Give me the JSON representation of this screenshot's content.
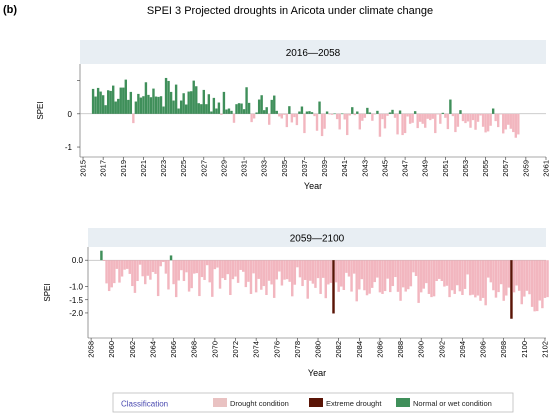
{
  "panel_tag": "(b)",
  "title": "SPEI 3 Projected droughts in Aricota under climate change",
  "colors": {
    "panel_header": "#e8eef3",
    "panel_bg": "#ffffff",
    "normal": "#3f8f5a",
    "drought": "#f2b6bf",
    "extreme": "#5a1406",
    "axis": "#000000",
    "legend_title": "#4a4ab0"
  },
  "legend": {
    "title": "Classification",
    "items": [
      {
        "label": "Drought condition",
        "color": "#e9c2c2"
      },
      {
        "label": "Extreme drought",
        "color": "#5a1406"
      },
      {
        "label": "Normal or wet condition",
        "color": "#3f8f5a"
      }
    ]
  },
  "chart_data": [
    {
      "type": "bar",
      "panel": "2016—2058",
      "xlabel": "Year",
      "ylabel": "SPEI",
      "xlim": [
        2014.7,
        2061
      ],
      "ylim": [
        -1.3,
        1.5
      ],
      "xticks": [
        2015,
        2017,
        2019,
        2021,
        2023,
        2025,
        2027,
        2029,
        2031,
        2033,
        2035,
        2037,
        2039,
        2041,
        2043,
        2045,
        2047,
        2049,
        2051,
        2053,
        2055,
        2057,
        2059,
        2061
      ],
      "yticks": [
        {
          "value": 1,
          "label": ""
        },
        {
          "value": 0,
          "label": "0"
        },
        {
          "value": -1,
          "label": "-1"
        }
      ],
      "x_start": 2016,
      "step": 0.25,
      "series": [
        {
          "values": [
            0.75,
            0.52,
            0.78,
            0.67,
            0.56,
            0.26,
            0.71,
            0.69,
            0.85,
            0.37,
            0.45,
            0.79,
            0.79,
            1.03,
            0.42,
            0.66,
            -0.28,
            0.37,
            0.6,
            0.49,
            0.53,
            0.95,
            0.57,
            0.5,
            0.76,
            0.52,
            0.51,
            0.53,
            0.22,
            1.08,
            0.99,
            0.66,
            0.4,
            0.88,
            0.16,
            0.4,
            0.62,
            0.28,
            0.67,
            0.68,
            1.0,
            0.83,
            0.32,
            0.29,
            0.72,
            0.29,
            0.59,
            0.07,
            0.48,
            0.16,
            0.34,
            -0.03,
            0.66,
            0.13,
            0.16,
            0.09,
            -0.27,
            0.29,
            0.32,
            0.31,
            0.14,
            0.8,
            0.33,
            -0.25,
            -0.14,
            0.04,
            0.43,
            0.56,
            0.11,
            0.2,
            -0.33,
            0.42,
            0.55,
            0.09,
            -0.08,
            -0.14,
            -0.03,
            -0.4,
            0.23,
            -0.26,
            -0.1,
            -0.34,
            0.07,
            0.22,
            -0.58,
            0.07,
            0.08,
            0.05,
            -0.07,
            -0.51,
            0.37,
            -0.67,
            -0.45,
            0.07,
            -0.02,
            -0.03,
            0.01,
            -0.16,
            -0.47,
            0.01,
            -0.17,
            -0.64,
            -0.05,
            0.2,
            -0.04,
            0.07,
            -0.47,
            -0.21,
            -0.12,
            0.18,
            0.04,
            -0.21,
            -0.02,
            0.09,
            -0.69,
            -0.16,
            -0.44,
            -0.06,
            0.04,
            0.12,
            -0.12,
            -0.62,
            0.1,
            -0.64,
            -0.58,
            -0.08,
            -0.3,
            -0.27,
            0.08,
            -0.43,
            -0.24,
            -0.3,
            -0.42,
            -0.15,
            -0.19,
            -0.15,
            -0.58,
            -0.02,
            -0.3,
            0.03,
            -0.12,
            -0.46,
            0.43,
            -0.07,
            -0.55,
            -0.39,
            0.11,
            -0.22,
            -0.28,
            -0.23,
            -0.42,
            -0.19,
            -0.48,
            -0.24,
            -0.05,
            -0.39,
            -0.56,
            -0.53,
            -0.36,
            0.16,
            -0.22,
            -0.4,
            -0.01,
            -0.59,
            -0.47,
            -0.33,
            -0.45,
            -0.55,
            -0.72,
            -0.62
          ]
        }
      ]
    },
    {
      "type": "bar",
      "panel": "2059—2100",
      "xlabel": "Year",
      "ylabel": "SPEI",
      "xlim": [
        2057.7,
        2102.1
      ],
      "ylim": [
        -2.95,
        0.5
      ],
      "xticks": [
        2058,
        2060,
        2062,
        2064,
        2066,
        2068,
        2070,
        2072,
        2074,
        2076,
        2078,
        2080,
        2082,
        2084,
        2086,
        2088,
        2090,
        2092,
        2094,
        2096,
        2098,
        2100,
        2102
      ],
      "yticks": [
        {
          "value": 0,
          "label": "0.0"
        },
        {
          "value": -1,
          "label": "-1.0"
        },
        {
          "value": -1.5,
          "label": "-1.5"
        },
        {
          "value": -2,
          "label": "-2.0"
        }
      ],
      "x_start": 2059,
      "step": 0.25,
      "series": [
        {
          "values": [
            0.36,
            -0.03,
            -0.88,
            -1.17,
            -1.03,
            -0.87,
            -0.33,
            -0.85,
            -0.62,
            -0.36,
            -0.33,
            -0.52,
            -0.98,
            -1.24,
            -0.79,
            -0.17,
            -0.61,
            -0.91,
            -0.59,
            -0.74,
            -0.45,
            -0.52,
            -1.36,
            -0.23,
            -0.07,
            -0.51,
            -1.11,
            0.18,
            -0.91,
            -1.4,
            -0.77,
            -0.38,
            -0.79,
            -0.46,
            -1.19,
            -1.06,
            -0.51,
            -0.49,
            -1.36,
            -0.64,
            -0.75,
            -0.19,
            -0.84,
            -1.39,
            -0.34,
            -0.28,
            -1.08,
            -0.68,
            -0.75,
            -0.53,
            -1.32,
            -0.72,
            -0.62,
            -0.86,
            -0.37,
            -0.44,
            -1.02,
            -0.82,
            -1.28,
            -0.5,
            -1.22,
            -0.71,
            -1.12,
            -0.98,
            -1.32,
            -0.78,
            -0.92,
            -1.43,
            -0.73,
            -0.43,
            -0.96,
            -0.74,
            -0.72,
            -0.82,
            -1.37,
            -0.93,
            -0.27,
            -0.65,
            -0.98,
            -0.75,
            -1.46,
            -0.78,
            -0.89,
            -1.05,
            -0.68,
            -1.28,
            -0.67,
            -1.44,
            -0.92,
            -0.86,
            -2.02,
            -0.84,
            -1.2,
            -1.0,
            -1.13,
            -0.48,
            -0.62,
            -1.19,
            -0.51,
            -1.56,
            -1.11,
            -0.72,
            -1.14,
            -1.33,
            -1.27,
            -1.05,
            -0.83,
            -0.66,
            -1.22,
            -1.28,
            -1.17,
            -0.7,
            -1.21,
            -0.98,
            -0.64,
            -1.2,
            -1.54,
            -1.03,
            -1.19,
            -1.1,
            -0.99,
            -0.46,
            -0.6,
            -1.62,
            -1.22,
            -1.08,
            -0.87,
            -1.28,
            -1.4,
            -1.37,
            -0.79,
            -0.71,
            -0.79,
            -1.0,
            -0.97,
            -1.4,
            -1.14,
            -1.28,
            -0.95,
            -1.18,
            -1.32,
            -1.09,
            -0.54,
            -1.33,
            -1.31,
            -1.41,
            -1.34,
            -1.54,
            -1.43,
            -1.71,
            -0.66,
            -0.84,
            -1.14,
            -1.42,
            -1.21,
            -0.91,
            -1.54,
            -1.34,
            -1.04,
            -2.22,
            -1.22,
            -0.96,
            -1.16,
            -1.67,
            -1.38,
            -1.16,
            -1.29,
            -1.77,
            -1.94,
            -1.93,
            -1.53,
            -1.82,
            -1.43,
            -1.4
          ]
        }
      ]
    }
  ]
}
